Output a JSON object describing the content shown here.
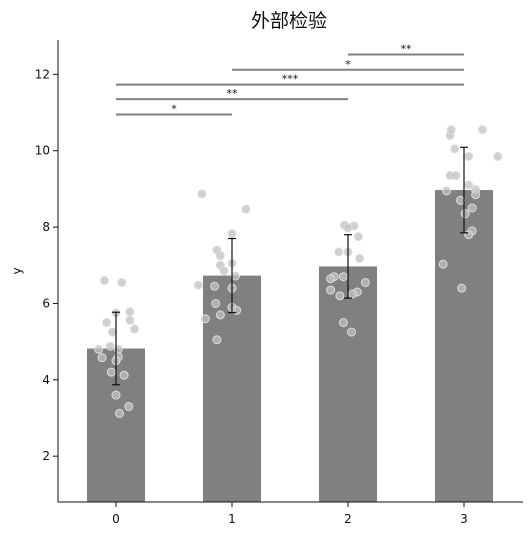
{
  "chart_data": {
    "type": "bar",
    "title": "外部检验",
    "xlabel": "",
    "ylabel": "y",
    "categories": [
      "0",
      "1",
      "2",
      "3"
    ],
    "values": [
      4.82,
      6.73,
      6.97,
      8.97
    ],
    "error": [
      0.95,
      0.97,
      0.83,
      1.12
    ],
    "ylim": [
      0.8,
      12.9
    ],
    "yticks": [
      2,
      4,
      6,
      8,
      10,
      12
    ],
    "bar_color": "#808080",
    "point_color": "#c0c0c0",
    "points": [
      [
        [
          -0.1,
          6.6
        ],
        [
          0.05,
          6.55
        ],
        [
          -0.08,
          5.5
        ],
        [
          0.12,
          5.78
        ],
        [
          0.0,
          5.75
        ],
        [
          0.12,
          5.56
        ],
        [
          0.16,
          5.33
        ],
        [
          -0.03,
          5.25
        ],
        [
          -0.15,
          4.8
        ],
        [
          -0.05,
          4.88
        ],
        [
          0.02,
          4.8
        ],
        [
          -0.12,
          4.58
        ],
        [
          0.02,
          4.6
        ],
        [
          0.0,
          4.5
        ],
        [
          -0.04,
          4.2
        ],
        [
          0.07,
          4.12
        ],
        [
          0.0,
          3.6
        ],
        [
          0.11,
          3.3
        ],
        [
          0.03,
          3.12
        ]
      ],
      [
        [
          -0.26,
          8.87
        ],
        [
          0.12,
          8.47
        ],
        [
          -0.13,
          7.4
        ],
        [
          -0.1,
          7.25
        ],
        [
          0.0,
          7.83
        ],
        [
          0.0,
          7.05
        ],
        [
          -0.1,
          7.0
        ],
        [
          -0.07,
          6.85
        ],
        [
          0.03,
          6.72
        ],
        [
          -0.29,
          6.48
        ],
        [
          -0.15,
          6.45
        ],
        [
          0.0,
          6.4
        ],
        [
          -0.14,
          6.0
        ],
        [
          0.0,
          5.9
        ],
        [
          0.04,
          5.82
        ],
        [
          -0.23,
          5.6
        ],
        [
          -0.1,
          5.7
        ],
        [
          -0.13,
          5.05
        ]
      ],
      [
        [
          -0.03,
          8.05
        ],
        [
          0.05,
          8.03
        ],
        [
          0.0,
          7.98
        ],
        [
          0.09,
          7.75
        ],
        [
          -0.08,
          7.35
        ],
        [
          0.0,
          7.35
        ],
        [
          0.1,
          7.18
        ],
        [
          -0.12,
          6.7
        ],
        [
          -0.15,
          6.65
        ],
        [
          0.15,
          6.55
        ],
        [
          -0.04,
          6.7
        ],
        [
          -0.15,
          6.35
        ],
        [
          0.08,
          6.3
        ],
        [
          -0.07,
          6.2
        ],
        [
          0.04,
          6.25
        ],
        [
          -0.04,
          5.5
        ],
        [
          0.03,
          5.25
        ]
      ],
      [
        [
          -0.12,
          10.4
        ],
        [
          -0.11,
          10.55
        ],
        [
          0.16,
          10.55
        ],
        [
          0.29,
          9.85
        ],
        [
          -0.08,
          10.05
        ],
        [
          0.04,
          9.85
        ],
        [
          -0.12,
          9.35
        ],
        [
          -0.07,
          9.35
        ],
        [
          0.04,
          9.1
        ],
        [
          0.1,
          8.98
        ],
        [
          -0.15,
          8.95
        ],
        [
          0.1,
          8.85
        ],
        [
          -0.03,
          8.7
        ],
        [
          0.07,
          8.5
        ],
        [
          0.01,
          8.35
        ],
        [
          0.07,
          7.9
        ],
        [
          0.04,
          7.8
        ],
        [
          -0.18,
          7.03
        ],
        [
          -0.02,
          6.4
        ]
      ]
    ],
    "significance": [
      {
        "from": 0,
        "to": 1,
        "y": 10.95,
        "label": "*"
      },
      {
        "from": 0,
        "to": 2,
        "y": 11.35,
        "label": "**"
      },
      {
        "from": 0,
        "to": 3,
        "y": 11.73,
        "label": "***"
      },
      {
        "from": 1,
        "to": 3,
        "y": 12.12,
        "label": "*"
      },
      {
        "from": 2,
        "to": 3,
        "y": 12.52,
        "label": "**"
      }
    ]
  }
}
